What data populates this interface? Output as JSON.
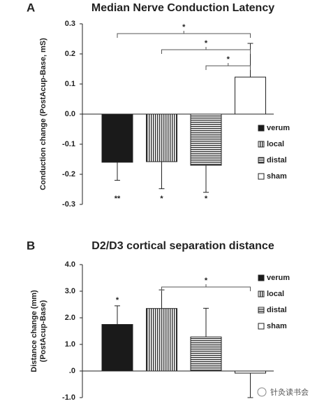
{
  "chart_data": [
    {
      "type": "bar",
      "panel": "A",
      "title": "Median Nerve Conduction Latency",
      "ylabel": [
        "Conduction change (PostAcup-Base, mS)"
      ],
      "categories": [
        "verum",
        "local",
        "distal",
        "sham"
      ],
      "series": [
        {
          "name": "verum-local-distal-sham",
          "values": [
            -0.16,
            -0.158,
            -0.17,
            0.123
          ],
          "errors": [
            0.06,
            0.09,
            0.09,
            0.112
          ],
          "hatch": [
            "solid",
            "vertical",
            "horizontal",
            "none"
          ],
          "color": "#1a1a1a"
        }
      ],
      "value_annotations": [
        "**",
        "*",
        "*",
        null
      ],
      "annotation_position": "below",
      "brackets": [
        {
          "from": 0,
          "to": 3,
          "label": "*"
        },
        {
          "from": 1,
          "to": 3,
          "label": "*"
        },
        {
          "from": 2,
          "to": 3,
          "label": "*"
        }
      ],
      "ylim": [
        -0.3,
        0.3
      ],
      "yticks": [
        -0.3,
        -0.2,
        -0.1,
        {
          "value": 0,
          "label": "0.0"
        },
        0.1,
        0.2,
        0.3
      ]
    },
    {
      "type": "bar",
      "panel": "B",
      "title": "D2/D3 cortical separation distance",
      "ylabel": [
        "Distance change (mm)",
        "(PostAcup-Base)"
      ],
      "categories": [
        "verum",
        "local",
        "distal",
        "sham"
      ],
      "series": [
        {
          "name": "verum-local-distal-sham",
          "values": [
            1.75,
            2.35,
            1.28,
            -0.08
          ],
          "errors": [
            0.7,
            0.7,
            1.08,
            0.92
          ],
          "hatch": [
            "solid",
            "vertical",
            "horizontal",
            "none"
          ],
          "color": "#1a1a1a"
        }
      ],
      "value_annotations": [
        "*",
        null,
        null,
        null
      ],
      "annotation_position": "above",
      "brackets": [
        {
          "from": 1,
          "to": 3,
          "label": "*"
        }
      ],
      "ylim": [
        -1,
        4
      ],
      "yticks": [
        {
          "value": -1,
          "label": "-1.0"
        },
        {
          "value": 0,
          "label": ".0"
        },
        {
          "value": 1,
          "label": "1.0"
        },
        {
          "value": 2,
          "label": "2.0"
        },
        {
          "value": 3,
          "label": "3.0"
        },
        {
          "value": 4,
          "label": "4.0"
        }
      ]
    }
  ],
  "watermark": "针灸读书会"
}
